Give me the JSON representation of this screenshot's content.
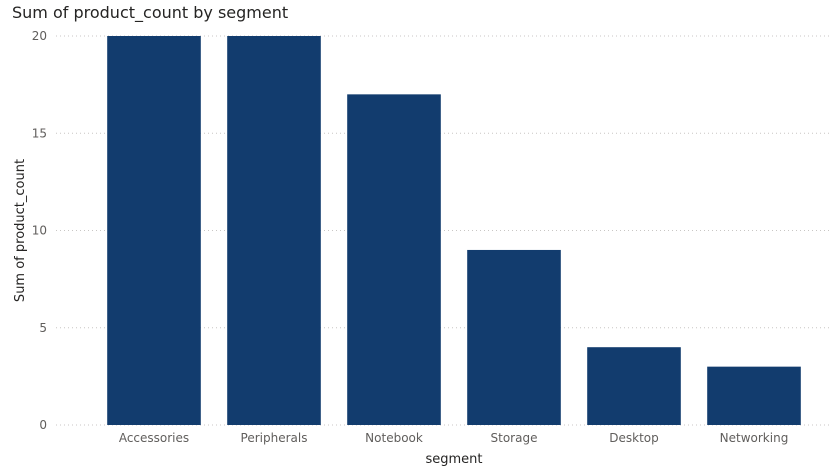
{
  "chart_data": {
    "type": "bar",
    "title": "Sum of product_count by segment",
    "xlabel": "segment",
    "ylabel": "Sum of product_count",
    "categories": [
      "Accessories",
      "Peripherals",
      "Notebook",
      "Storage",
      "Desktop",
      "Networking"
    ],
    "series": [
      {
        "values": [
          20,
          20,
          17,
          9,
          4,
          3
        ]
      }
    ],
    "yticks": [
      0,
      5,
      10,
      15,
      20
    ],
    "ylim": [
      0,
      20
    ],
    "grid": true,
    "bar_color": "#123C6E"
  }
}
